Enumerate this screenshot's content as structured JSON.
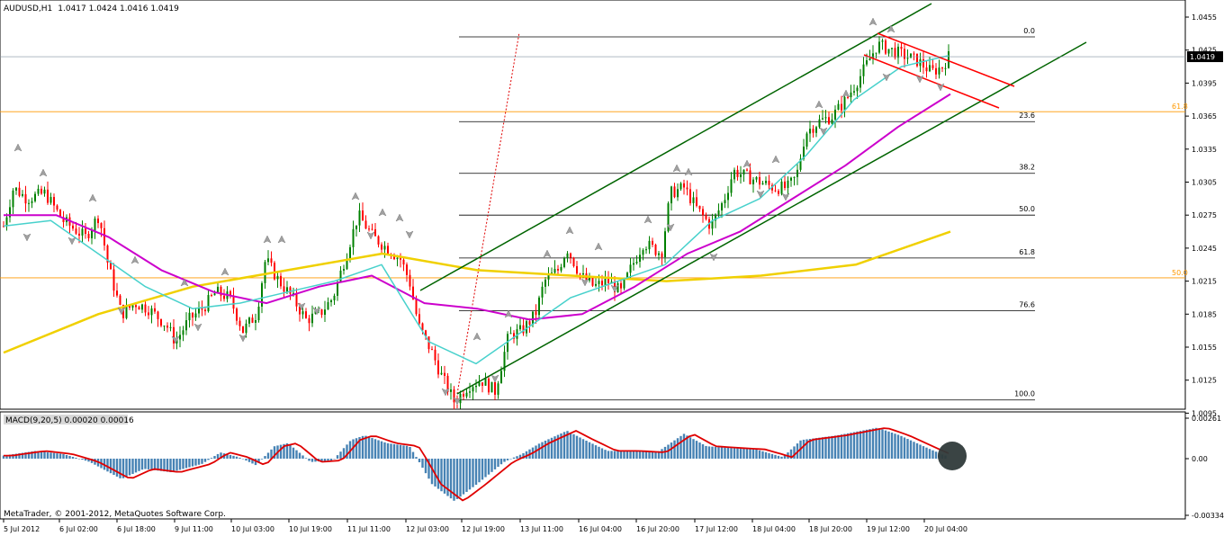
{
  "header": {
    "symbol": "AUDUSD,H1",
    "ohlc": "1.0417 1.0424 1.0416 1.0419"
  },
  "price_axis": {
    "ticks": [
      "1.0455",
      "1.0425",
      "1.0395",
      "1.0365",
      "1.0335",
      "1.0305",
      "1.0275",
      "1.0245",
      "1.0215",
      "1.0185",
      "1.0155",
      "1.0125",
      "1.0095"
    ],
    "current_price": "1.0419"
  },
  "time_axis": {
    "ticks": [
      "5 Jul 2012",
      "6 Jul 02:00",
      "6 Jul 18:00",
      "9 Jul 11:00",
      "10 Jul 03:00",
      "10 Jul 19:00",
      "11 Jul 11:00",
      "12 Jul 03:00",
      "12 Jul 19:00",
      "13 Jul 11:00",
      "16 Jul 04:00",
      "16 Jul 20:00",
      "17 Jul 12:00",
      "18 Jul 04:00",
      "18 Jul 20:00",
      "19 Jul 12:00",
      "20 Jul 04:00"
    ]
  },
  "fibonacci": {
    "levels": [
      "0.0",
      "23.6",
      "38.2",
      "50.0",
      "61.8",
      "76.6",
      "100.0"
    ],
    "horizontal_labels": {
      "upper": "61.8",
      "lower": "50.0"
    }
  },
  "macd": {
    "label": "MACD(9,20,5) 0.00020 0.00016",
    "ticks": [
      "0.00261",
      "0.00",
      "-0.00334"
    ]
  },
  "copyright": "MetaTrader, © 2001-2012, MetaQuotes Software Corp.",
  "colors": {
    "up_candle": "#008000",
    "down_candle": "#ff0000",
    "channel": "#006400",
    "ma_fast": "#48d1cc",
    "ma_mid": "#cc00cc",
    "ma_slow": "#f0d000",
    "fib": "#000000",
    "hline": "#ff9900",
    "macd_hist": "#4682b4",
    "macd_signal": "#e00000"
  },
  "chart_data": {
    "type": "candlestick",
    "symbol": "AUDUSD",
    "timeframe": "H1",
    "ylim": [
      1.009,
      1.0465
    ],
    "sample_closes": [
      1.0265,
      1.03,
      1.028,
      1.0255,
      1.02,
      1.018,
      1.017,
      1.02,
      1.019,
      1.0165,
      1.0235,
      1.02,
      1.018,
      1.0185,
      1.027,
      1.0255,
      1.023,
      1.025,
      1.018,
      1.014,
      1.01,
      1.0125,
      1.0175,
      1.019,
      1.022,
      1.0215,
      1.024,
      1.0205,
      1.023,
      1.0255,
      1.03,
      1.0275,
      1.025,
      1.03,
      1.03,
      1.0295,
      1.0345,
      1.036,
      1.04,
      1.043,
      1.042,
      1.041,
      1.0419
    ],
    "moving_averages": [
      {
        "color": "cyan",
        "values": [
          1.0265,
          1.027,
          1.024,
          1.021,
          1.019,
          1.0195,
          1.0205,
          1.0215,
          1.023,
          1.016,
          1.014,
          1.017,
          1.02,
          1.0215,
          1.023,
          1.027,
          1.029,
          1.033,
          1.038,
          1.041,
          1.042
        ]
      },
      {
        "color": "magenta",
        "values": [
          1.0275,
          1.0275,
          1.0255,
          1.0225,
          1.0205,
          1.0195,
          1.021,
          1.022,
          1.0195,
          1.019,
          1.018,
          1.0185,
          1.021,
          1.024,
          1.026,
          1.029,
          1.032,
          1.0355,
          1.0385
        ]
      },
      {
        "color": "yellow",
        "values": [
          1.015,
          1.0185,
          1.021,
          1.0225,
          1.024,
          1.0225,
          1.022,
          1.0215,
          1.022,
          1.023,
          1.026
        ]
      }
    ],
    "fibonacci_prices": {
      "0.0": 1.0437,
      "23.6": 1.036,
      "38.2": 1.0313,
      "50.0": 1.0275,
      "61.8": 1.0236,
      "76.6": 1.0188,
      "100.0": 1.0107
    },
    "horizontal_lines": {
      "61.8": 1.0369,
      "50.0": 1.0218
    },
    "macd": {
      "ylim": [
        -0.00334,
        0.00261
      ]
    }
  }
}
